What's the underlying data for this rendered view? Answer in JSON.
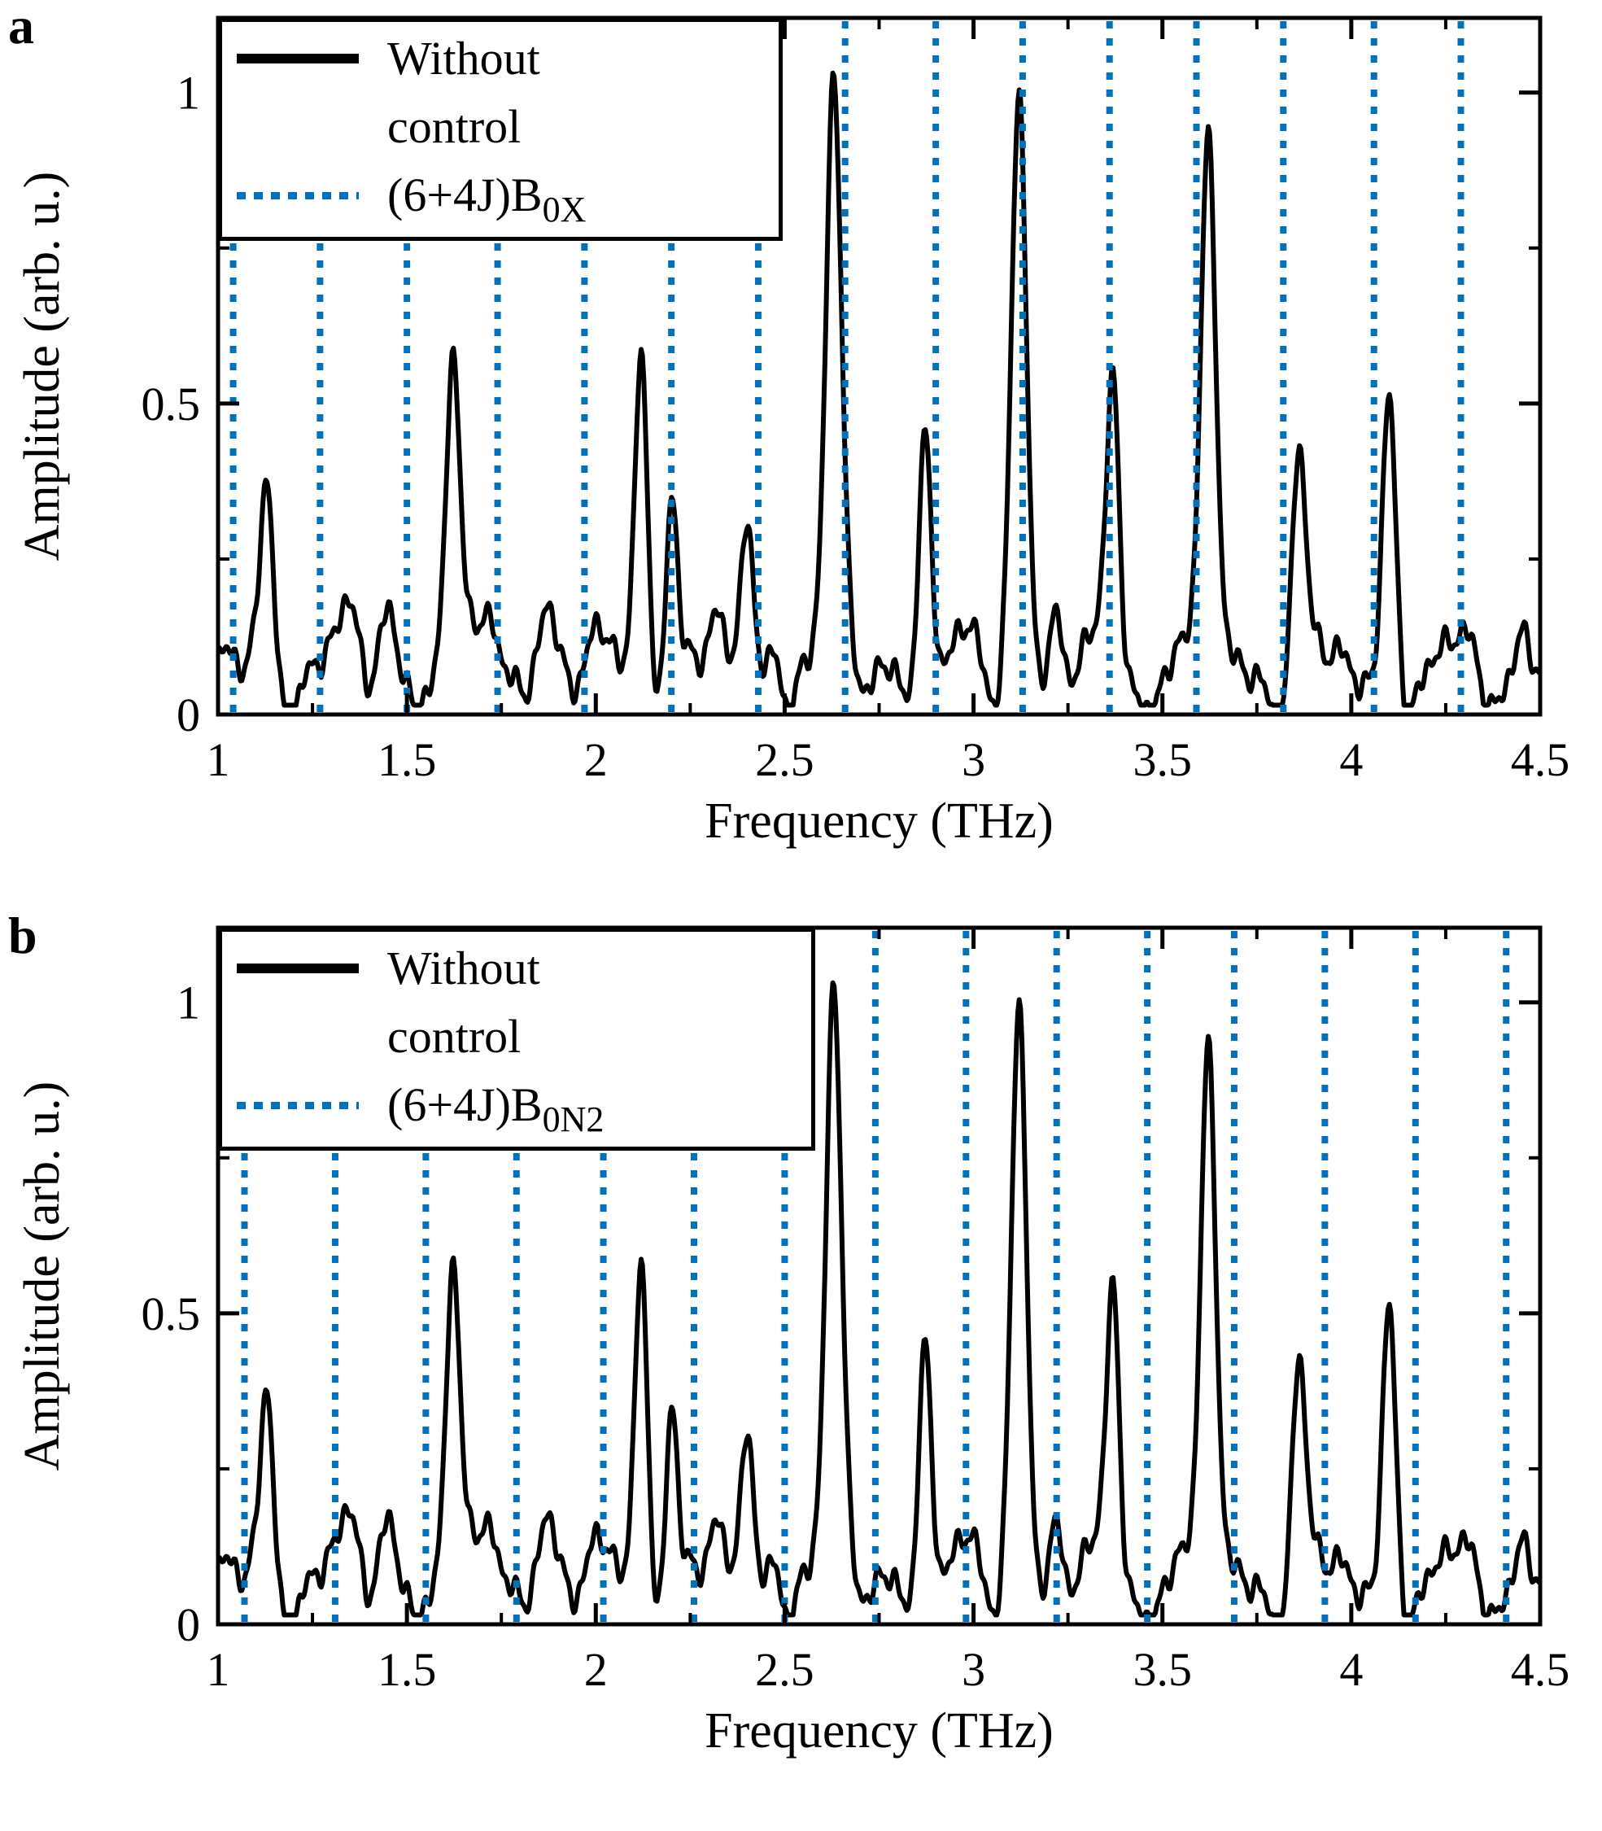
{
  "colors": {
    "spectrum": "#000000",
    "comb": "#0072BD",
    "axes": "#000000",
    "background": "#ffffff"
  },
  "chart_data": [
    {
      "type": "line",
      "panel_label": "a",
      "xlabel": "Frequency (THz)",
      "ylabel": "Amplitude (arb. u.)",
      "xlim": [
        1,
        4.5
      ],
      "ylim": [
        0,
        1.12
      ],
      "xticks": [
        1,
        1.5,
        2,
        2.5,
        3,
        3.5,
        4,
        4.5
      ],
      "xtick_labels": [
        "1",
        "1.5",
        "2",
        "2.5",
        "3",
        "3.5",
        "4",
        "4.5"
      ],
      "xminor": [
        1.25,
        1.75,
        2.25,
        2.75,
        3.25,
        3.75,
        4.25
      ],
      "yticks": [
        0,
        0.5,
        1
      ],
      "ytick_labels": [
        "0",
        "0.5",
        "1"
      ],
      "yminor": [
        0.25,
        0.75
      ],
      "grid": false,
      "legend_position": "top-left",
      "series": [
        {
          "name": "Without control",
          "legend_lines": [
            "Without",
            "control"
          ],
          "type": "spectrum",
          "color": "#000000",
          "line_width": 6,
          "peaks": [
            {
              "x": 1.13,
              "a": 0.3,
              "w": 0.017
            },
            {
              "x": 1.35,
              "a": 0.07,
              "w": 0.022
            },
            {
              "x": 1.45,
              "a": 0.08,
              "w": 0.022
            },
            {
              "x": 1.62,
              "a": 0.5,
              "w": 0.018
            },
            {
              "x": 1.73,
              "a": 0.1,
              "w": 0.02
            },
            {
              "x": 1.87,
              "a": 0.11,
              "w": 0.022
            },
            {
              "x": 2.12,
              "a": 0.53,
              "w": 0.018
            },
            {
              "x": 2.2,
              "a": 0.27,
              "w": 0.015
            },
            {
              "x": 2.31,
              "a": 0.08,
              "w": 0.016
            },
            {
              "x": 2.4,
              "a": 0.22,
              "w": 0.016
            },
            {
              "x": 2.48,
              "a": 0.09,
              "w": 0.016
            },
            {
              "x": 2.63,
              "a": 0.92,
              "w": 0.02
            },
            {
              "x": 2.87,
              "a": 0.4,
              "w": 0.017
            },
            {
              "x": 3.12,
              "a": 0.95,
              "w": 0.02
            },
            {
              "x": 3.22,
              "a": 0.08,
              "w": 0.016
            },
            {
              "x": 3.37,
              "a": 0.47,
              "w": 0.017
            },
            {
              "x": 3.62,
              "a": 0.85,
              "w": 0.02
            },
            {
              "x": 3.86,
              "a": 0.35,
              "w": 0.017
            },
            {
              "x": 4.1,
              "a": 0.44,
              "w": 0.017
            },
            {
              "x": 4.46,
              "a": 0.07,
              "w": 0.022
            }
          ],
          "baseline": {
            "offset": 0.07,
            "floor": 0.015,
            "components": [
              [
                0.04,
                19.3,
                0.8
              ],
              [
                0.028,
                33.7,
                2.1
              ],
              [
                0.02,
                57.1,
                0.3
              ],
              [
                0.013,
                91.7,
                1.7
              ],
              [
                0.012,
                151.0,
                0.9
              ],
              [
                0.008,
                263.0,
                2.7
              ]
            ]
          }
        },
        {
          "name": "(6+4J)B0X",
          "label_main": "(6+4J)B",
          "label_sub": "0X",
          "type": "vlines",
          "style": "dotted",
          "color": "#0072BD",
          "line_width": 8,
          "positions": [
            1.04,
            1.27,
            1.5,
            1.74,
            1.97,
            2.2,
            2.43,
            2.66,
            2.9,
            3.13,
            3.36,
            3.59,
            3.82,
            4.06,
            4.29
          ]
        }
      ]
    },
    {
      "type": "line",
      "panel_label": "b",
      "xlabel": "Frequency (THz)",
      "ylabel": "Amplitude (arb. u.)",
      "xlim": [
        1,
        4.5
      ],
      "ylim": [
        0,
        1.12
      ],
      "xticks": [
        1,
        1.5,
        2,
        2.5,
        3,
        3.5,
        4,
        4.5
      ],
      "xtick_labels": [
        "1",
        "1.5",
        "2",
        "2.5",
        "3",
        "3.5",
        "4",
        "4.5"
      ],
      "xminor": [
        1.25,
        1.75,
        2.25,
        2.75,
        3.25,
        3.75,
        4.25
      ],
      "yticks": [
        0,
        0.5,
        1
      ],
      "ytick_labels": [
        "0",
        "0.5",
        "1"
      ],
      "yminor": [
        0.25,
        0.75
      ],
      "grid": false,
      "legend_position": "top-left",
      "series": [
        {
          "name": "Without control",
          "legend_lines": [
            "Without",
            "control"
          ],
          "type": "spectrum",
          "color": "#000000",
          "line_width": 6,
          "peaks": [
            {
              "x": 1.13,
              "a": 0.3,
              "w": 0.017
            },
            {
              "x": 1.35,
              "a": 0.07,
              "w": 0.022
            },
            {
              "x": 1.45,
              "a": 0.08,
              "w": 0.022
            },
            {
              "x": 1.62,
              "a": 0.5,
              "w": 0.018
            },
            {
              "x": 1.73,
              "a": 0.1,
              "w": 0.02
            },
            {
              "x": 1.87,
              "a": 0.11,
              "w": 0.022
            },
            {
              "x": 2.12,
              "a": 0.53,
              "w": 0.018
            },
            {
              "x": 2.2,
              "a": 0.27,
              "w": 0.015
            },
            {
              "x": 2.31,
              "a": 0.08,
              "w": 0.016
            },
            {
              "x": 2.4,
              "a": 0.22,
              "w": 0.016
            },
            {
              "x": 2.48,
              "a": 0.09,
              "w": 0.016
            },
            {
              "x": 2.63,
              "a": 0.92,
              "w": 0.02
            },
            {
              "x": 2.87,
              "a": 0.4,
              "w": 0.017
            },
            {
              "x": 3.12,
              "a": 0.95,
              "w": 0.02
            },
            {
              "x": 3.22,
              "a": 0.08,
              "w": 0.016
            },
            {
              "x": 3.37,
              "a": 0.47,
              "w": 0.017
            },
            {
              "x": 3.62,
              "a": 0.85,
              "w": 0.02
            },
            {
              "x": 3.86,
              "a": 0.35,
              "w": 0.017
            },
            {
              "x": 4.1,
              "a": 0.44,
              "w": 0.017
            },
            {
              "x": 4.46,
              "a": 0.07,
              "w": 0.022
            }
          ],
          "baseline": {
            "offset": 0.07,
            "floor": 0.015,
            "components": [
              [
                0.04,
                19.3,
                0.8
              ],
              [
                0.028,
                33.7,
                2.1
              ],
              [
                0.02,
                57.1,
                0.3
              ],
              [
                0.013,
                91.7,
                1.7
              ],
              [
                0.012,
                151.0,
                0.9
              ],
              [
                0.008,
                263.0,
                2.7
              ]
            ]
          }
        },
        {
          "name": "(6+4J)B0N2",
          "label_main": "(6+4J)B",
          "label_sub": "0N2",
          "type": "vlines",
          "style": "dotted",
          "color": "#0072BD",
          "line_width": 8,
          "positions": [
            1.07,
            1.31,
            1.55,
            1.79,
            2.02,
            2.26,
            2.5,
            2.74,
            2.98,
            3.22,
            3.46,
            3.69,
            3.93,
            4.17,
            4.41
          ]
        }
      ]
    }
  ]
}
